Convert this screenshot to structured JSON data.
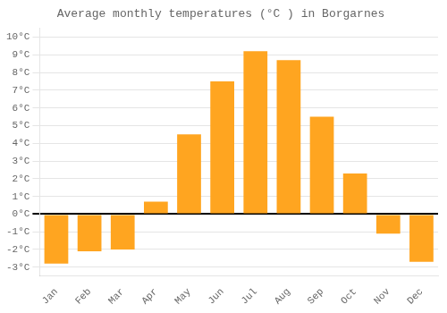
{
  "chart_data": {
    "type": "bar",
    "title": "Average monthly temperatures (°C ) in Borgarnes",
    "categories": [
      "Jan",
      "Feb",
      "Mar",
      "Apr",
      "May",
      "Jun",
      "Jul",
      "Aug",
      "Sep",
      "Oct",
      "Nov",
      "Dec"
    ],
    "values": [
      -2.8,
      -2.1,
      -2.0,
      0.7,
      4.5,
      7.5,
      9.2,
      8.7,
      5.5,
      2.3,
      -1.1,
      -2.7
    ],
    "color": "#FFA520",
    "ylim": [
      -3.5,
      10.5
    ],
    "yticks": [
      {
        "value": -3,
        "label": "-3°C"
      },
      {
        "value": -2,
        "label": "-2°C"
      },
      {
        "value": -1,
        "label": "-1°C"
      },
      {
        "value": 0,
        "label": "0°C"
      },
      {
        "value": 1,
        "label": "1°C"
      },
      {
        "value": 2,
        "label": "2°C"
      },
      {
        "value": 3,
        "label": "3°C"
      },
      {
        "value": 4,
        "label": "4°C"
      },
      {
        "value": 5,
        "label": "5°C"
      },
      {
        "value": 6,
        "label": "6°C"
      },
      {
        "value": 7,
        "label": "7°C"
      },
      {
        "value": 8,
        "label": "8°C"
      },
      {
        "value": 9,
        "label": "9°C"
      },
      {
        "value": 10,
        "label": "10°C"
      }
    ],
    "grid": true
  }
}
